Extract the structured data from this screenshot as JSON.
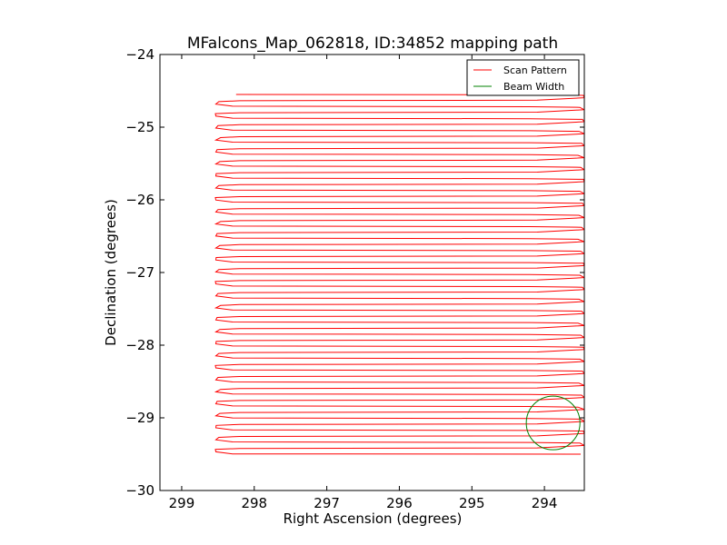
{
  "chart_data": {
    "type": "line",
    "title": "MFalcons_Map_062818, ID:34852 mapping path",
    "xlabel": "Right Ascension (degrees)",
    "ylabel": "Declination (degrees)",
    "x_inverted": true,
    "xlim": [
      299.3,
      293.45
    ],
    "ylim": [
      -30,
      -24
    ],
    "xticks": [
      {
        "value": 299,
        "label": "299"
      },
      {
        "value": 298,
        "label": "298"
      },
      {
        "value": 297,
        "label": "297"
      },
      {
        "value": 296,
        "label": "296"
      },
      {
        "value": 295,
        "label": "295"
      },
      {
        "value": 294,
        "label": "294"
      }
    ],
    "yticks": [
      {
        "value": -24,
        "label": "−24"
      },
      {
        "value": -25,
        "label": "−25"
      },
      {
        "value": -26,
        "label": "−26"
      },
      {
        "value": -27,
        "label": "−27"
      },
      {
        "value": -28,
        "label": "−28"
      },
      {
        "value": -29,
        "label": "−29"
      },
      {
        "value": -30,
        "label": "−30"
      }
    ],
    "grid": false,
    "legend_position": "top-right",
    "series": [
      {
        "name": "Scan Pattern",
        "color": "#ff0000",
        "kind": "raster-scan",
        "ra_range": [
          298.5,
          293.5
        ],
        "dec_range": [
          -24.55,
          -29.5
        ],
        "start_ra": 298.25,
        "legs": 60
      },
      {
        "name": "Beam Width",
        "color": "#008000",
        "kind": "circle",
        "center": [
          293.88,
          -29.07
        ],
        "radius_deg": 0.37
      }
    ]
  }
}
